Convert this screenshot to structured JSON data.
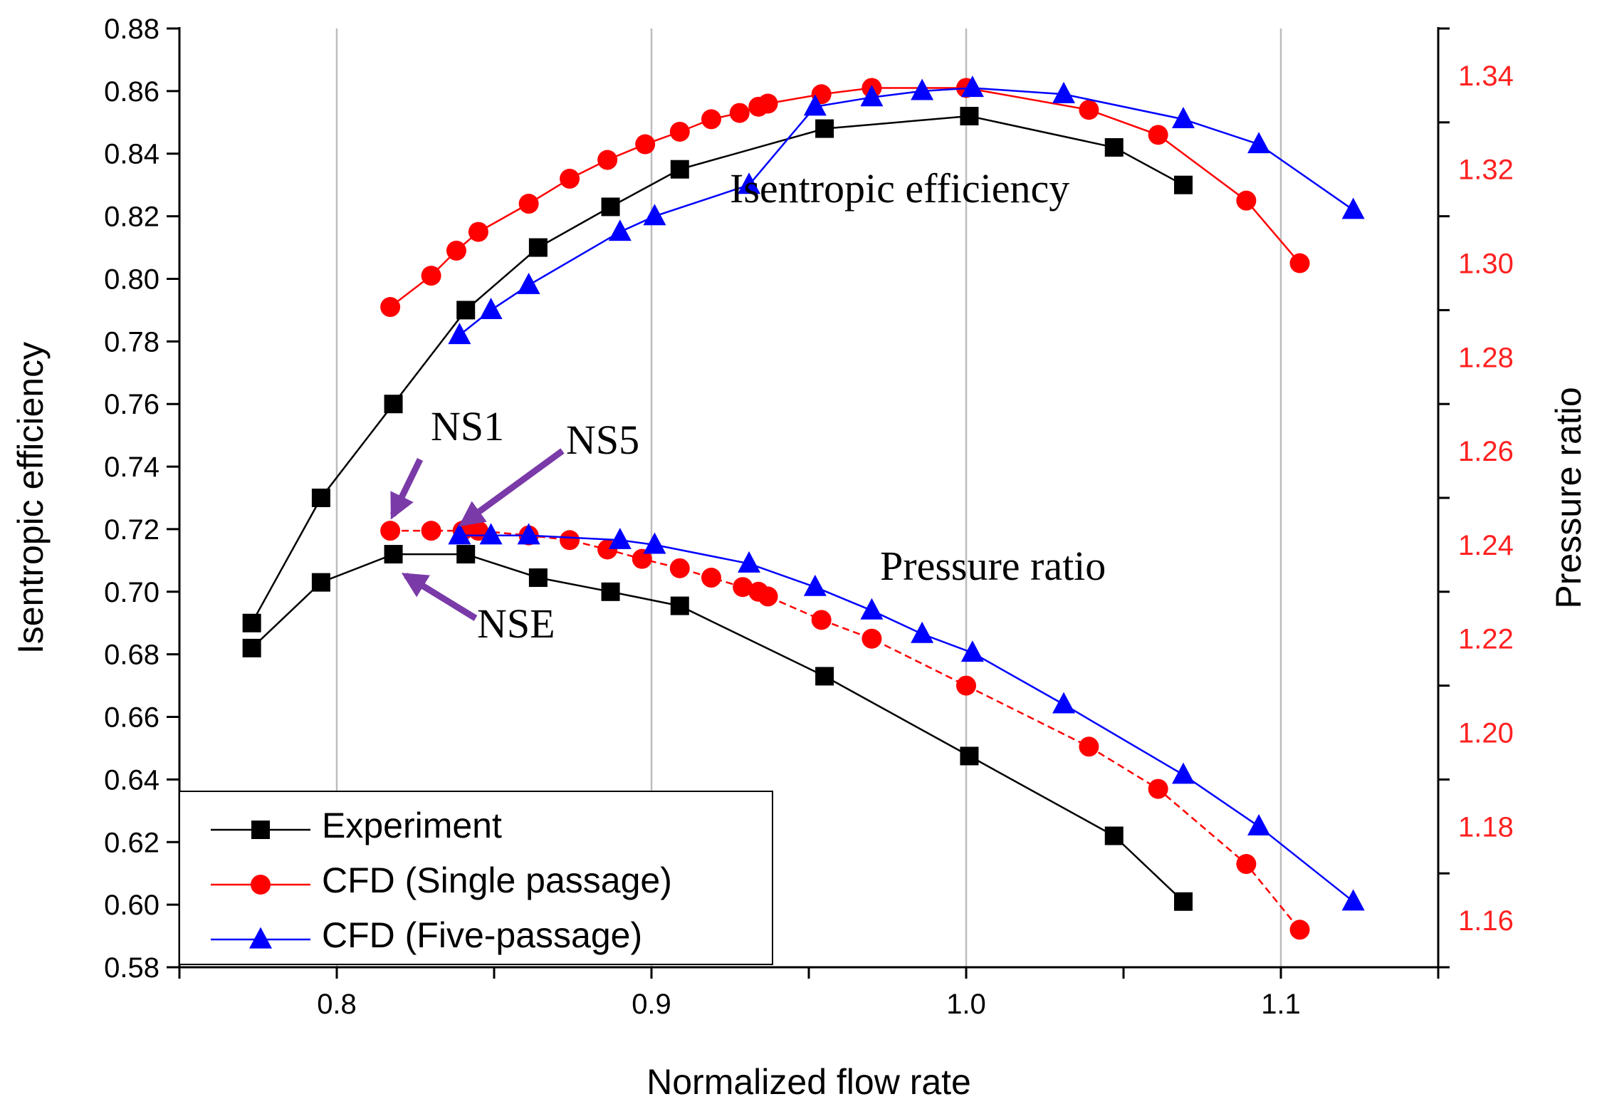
{
  "chart_data": {
    "type": "line",
    "title": "",
    "xlabel": "Normalized flow rate",
    "ylabel": "Isentropic efficiency",
    "y2label": "Pressure ratio",
    "xlim": [
      0.75,
      1.15
    ],
    "ylim": [
      0.58,
      0.88
    ],
    "y2lim": [
      1.15,
      1.35
    ],
    "x_ticks": [
      "0.8",
      "0.9",
      "1.0",
      "1.1"
    ],
    "y_ticks": [
      "0.58",
      "0.60",
      "0.62",
      "0.64",
      "0.66",
      "0.68",
      "0.70",
      "0.72",
      "0.74",
      "0.76",
      "0.78",
      "0.80",
      "0.82",
      "0.84",
      "0.86",
      "0.88"
    ],
    "y2_ticks": [
      "1.16",
      "1.18",
      "1.20",
      "1.22",
      "1.24",
      "1.26",
      "1.28",
      "1.30",
      "1.32",
      "1.34"
    ],
    "grid": true,
    "legend_position": "bottom-left",
    "series": [
      {
        "name": "Experiment",
        "color": "#000000",
        "marker": "square",
        "efficiency": {
          "x": [
            0.773,
            0.795,
            0.818,
            0.841,
            0.864,
            0.887,
            0.909,
            0.955,
            1.001,
            1.047,
            1.069
          ],
          "y": [
            0.69,
            0.73,
            0.76,
            0.79,
            0.81,
            0.823,
            0.835,
            0.848,
            0.852,
            0.842,
            0.83
          ]
        },
        "pressure_ratio": {
          "x": [
            0.773,
            0.795,
            0.818,
            0.841,
            0.864,
            0.887,
            0.909,
            0.955,
            1.001,
            1.047,
            1.069
          ],
          "y": [
            1.218,
            1.232,
            1.238,
            1.238,
            1.233,
            1.23,
            1.227,
            1.212,
            1.195,
            1.178,
            1.164
          ]
        }
      },
      {
        "name": "CFD (Single passage)",
        "color": "#ff0000",
        "marker": "circle",
        "efficiency": {
          "x": [
            0.817,
            0.83,
            0.838,
            0.845,
            0.861,
            0.874,
            0.886,
            0.898,
            0.909,
            0.919,
            0.928,
            0.934,
            0.937,
            0.954,
            0.97,
            1.0,
            1.039,
            1.061,
            1.089,
            1.106
          ],
          "y": [
            0.791,
            0.801,
            0.809,
            0.815,
            0.824,
            0.832,
            0.838,
            0.843,
            0.847,
            0.851,
            0.853,
            0.855,
            0.856,
            0.859,
            0.861,
            0.861,
            0.854,
            0.846,
            0.825,
            0.805
          ]
        },
        "pressure_ratio": {
          "x": [
            0.817,
            0.83,
            0.84,
            0.845,
            0.861,
            0.874,
            0.886,
            0.897,
            0.909,
            0.919,
            0.929,
            0.934,
            0.937,
            0.954,
            0.97,
            1.0,
            1.039,
            1.061,
            1.089,
            1.106
          ],
          "y": [
            1.243,
            1.243,
            1.243,
            1.243,
            1.242,
            1.241,
            1.239,
            1.237,
            1.235,
            1.233,
            1.231,
            1.23,
            1.229,
            1.224,
            1.22,
            1.21,
            1.197,
            1.188,
            1.172,
            1.158
          ]
        }
      },
      {
        "name": "CFD (Five-passage)",
        "color": "#0000ff",
        "marker": "triangle",
        "efficiency": {
          "x": [
            0.839,
            0.849,
            0.861,
            0.89,
            0.901,
            0.931,
            0.952,
            0.97,
            0.986,
            1.002,
            1.031,
            1.069,
            1.093,
            1.123
          ],
          "y": [
            0.782,
            0.79,
            0.798,
            0.815,
            0.82,
            0.83,
            0.855,
            0.858,
            0.86,
            0.861,
            0.859,
            0.851,
            0.843,
            0.822
          ]
        },
        "pressure_ratio": {
          "x": [
            0.839,
            0.849,
            0.861,
            0.89,
            0.901,
            0.931,
            0.952,
            0.97,
            0.986,
            1.002,
            1.031,
            1.069,
            1.093,
            1.123
          ],
          "y": [
            1.242,
            1.242,
            1.242,
            1.241,
            1.24,
            1.236,
            1.231,
            1.226,
            1.221,
            1.217,
            1.206,
            1.191,
            1.18,
            1.164
          ]
        }
      }
    ],
    "annotations": [
      {
        "text": "Isentropic efficiency"
      },
      {
        "text": "Pressure ratio"
      },
      {
        "text": "NS1"
      },
      {
        "text": "NS5"
      },
      {
        "text": "NSE"
      }
    ]
  }
}
